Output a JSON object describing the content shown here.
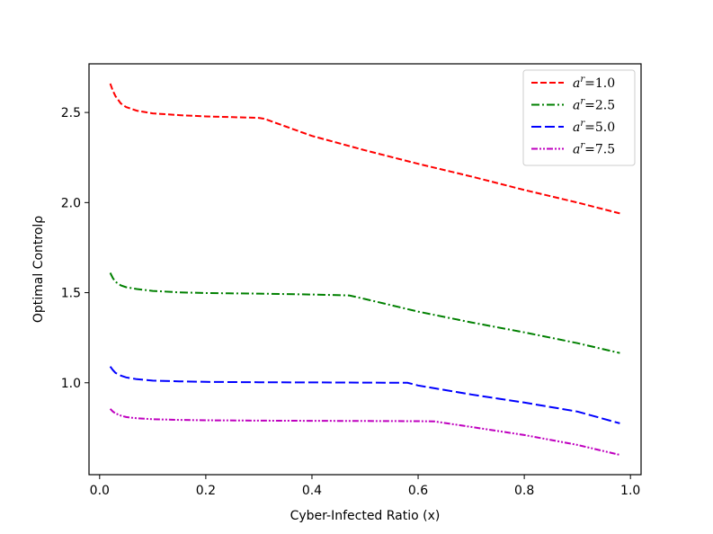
{
  "chart_data": {
    "type": "line",
    "title": "",
    "xlabel": "Cyber-Infected Ratio (x)",
    "ylabel": "Optimal Controlρ",
    "xlim": [
      -0.02,
      1.02
    ],
    "ylim": [
      0.49,
      2.77
    ],
    "xticks": [
      0.0,
      0.2,
      0.4,
      0.6,
      0.8,
      1.0
    ],
    "xtick_labels": [
      "0.0",
      "0.2",
      "0.4",
      "0.6",
      "0.8",
      "1.0"
    ],
    "yticks": [
      1.0,
      1.5,
      2.0,
      2.5
    ],
    "ytick_labels": [
      "1.0",
      "1.5",
      "2.0",
      "2.5"
    ],
    "grid": false,
    "legend_position": "top-right",
    "series": [
      {
        "name": "a^r=1.0",
        "legend_base": "a",
        "legend_sup": "r",
        "legend_value": "=1.0",
        "color": "#ff0000",
        "linestyle": "dashed",
        "x": [
          0.02,
          0.025,
          0.03,
          0.04,
          0.05,
          0.07,
          0.1,
          0.15,
          0.2,
          0.25,
          0.3,
          0.31,
          0.4,
          0.5,
          0.6,
          0.7,
          0.8,
          0.9,
          0.98
        ],
        "y": [
          2.66,
          2.62,
          2.59,
          2.55,
          2.53,
          2.51,
          2.495,
          2.485,
          2.478,
          2.474,
          2.47,
          2.465,
          2.37,
          2.29,
          2.215,
          2.145,
          2.07,
          2.0,
          1.94
        ]
      },
      {
        "name": "a^r=2.5",
        "legend_base": "a",
        "legend_sup": "r",
        "legend_value": "=2.5",
        "color": "#008000",
        "linestyle": "dashdot",
        "x": [
          0.02,
          0.025,
          0.03,
          0.04,
          0.05,
          0.07,
          0.1,
          0.15,
          0.2,
          0.3,
          0.4,
          0.47,
          0.5,
          0.6,
          0.7,
          0.8,
          0.9,
          0.98
        ],
        "y": [
          1.61,
          1.58,
          1.56,
          1.54,
          1.53,
          1.52,
          1.51,
          1.502,
          1.498,
          1.495,
          1.49,
          1.485,
          1.465,
          1.395,
          1.335,
          1.28,
          1.22,
          1.165
        ]
      },
      {
        "name": "a^r=5.0",
        "legend_base": "a",
        "legend_sup": "r",
        "legend_value": "=5.0",
        "color": "#0000ff",
        "linestyle": "longdash",
        "x": [
          0.02,
          0.025,
          0.03,
          0.04,
          0.05,
          0.07,
          0.1,
          0.15,
          0.2,
          0.3,
          0.4,
          0.5,
          0.58,
          0.6,
          0.7,
          0.8,
          0.9,
          0.98
        ],
        "y": [
          1.09,
          1.07,
          1.055,
          1.04,
          1.03,
          1.02,
          1.012,
          1.008,
          1.005,
          1.003,
          1.002,
          1.001,
          1.0,
          0.985,
          0.935,
          0.89,
          0.84,
          0.775
        ]
      },
      {
        "name": "a^r=7.5",
        "legend_base": "a",
        "legend_sup": "r",
        "legend_value": "=7.5",
        "color": "#bf00bf",
        "linestyle": "dashdotdot",
        "x": [
          0.02,
          0.025,
          0.03,
          0.04,
          0.05,
          0.07,
          0.1,
          0.15,
          0.2,
          0.3,
          0.4,
          0.5,
          0.6,
          0.63,
          0.7,
          0.8,
          0.9,
          0.98
        ],
        "y": [
          0.855,
          0.84,
          0.83,
          0.818,
          0.81,
          0.803,
          0.798,
          0.794,
          0.792,
          0.79,
          0.789,
          0.788,
          0.787,
          0.786,
          0.755,
          0.71,
          0.655,
          0.6
        ]
      }
    ]
  }
}
